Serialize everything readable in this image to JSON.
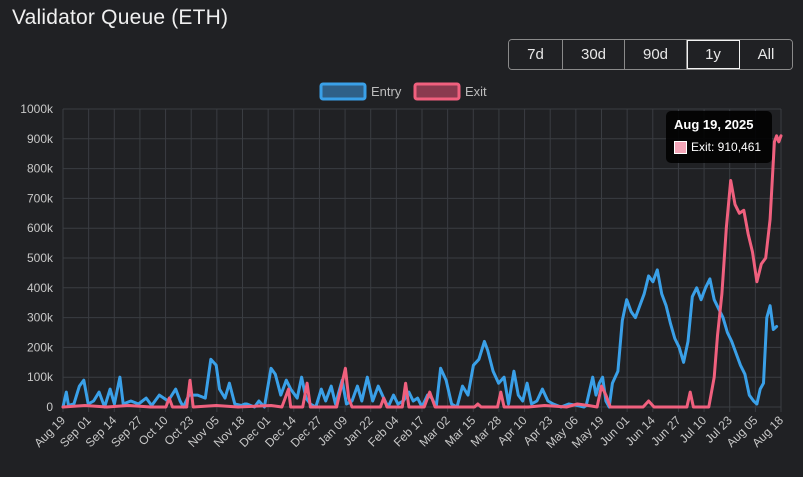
{
  "header": {
    "title": "Validator Queue (ETH)"
  },
  "range_selector": {
    "options": [
      "7d",
      "30d",
      "90d",
      "1y",
      "All"
    ],
    "active": "1y"
  },
  "tooltip": {
    "date": "Aug 19, 2025",
    "series": "Exit",
    "value": "910,461",
    "label": "Exit: 910,461"
  },
  "colors": {
    "entry": "#3aa0e8",
    "exit": "#f0607e",
    "background": "#202124",
    "grid": "#3a3d42"
  },
  "chart_data": {
    "type": "line",
    "title": "Validator Queue (ETH)",
    "ylim": [
      0,
      1000000
    ],
    "yticks": [
      0,
      100000,
      200000,
      300000,
      400000,
      500000,
      600000,
      700000,
      800000,
      900000,
      1000000
    ],
    "ytick_labels": [
      "0",
      "100k",
      "200k",
      "300k",
      "400k",
      "500k",
      "600k",
      "700k",
      "800k",
      "900k",
      "1000k"
    ],
    "xtick_labels": [
      "Aug 19",
      "Sep 01",
      "Sep 14",
      "Sep 27",
      "Oct 10",
      "Oct 23",
      "Nov 05",
      "Nov 18",
      "Dec 01",
      "Dec 14",
      "Dec 27",
      "Jan 09",
      "Jan 22",
      "Feb 04",
      "Feb 17",
      "Mar 02",
      "Mar 15",
      "Mar 28",
      "Apr 10",
      "Apr 23",
      "May 06",
      "May 19",
      "Jun 01",
      "Jun 14",
      "Jun 27",
      "Jul 10",
      "Jul 23",
      "Aug 05",
      "Aug 18"
    ],
    "legend_position": "top-center",
    "series": [
      {
        "name": "Entry",
        "color": "#3aa0e8",
        "points": [
          [
            0,
            0
          ],
          [
            3,
            50000
          ],
          [
            5,
            5000
          ],
          [
            10,
            10000
          ],
          [
            15,
            70000
          ],
          [
            19,
            90000
          ],
          [
            23,
            10000
          ],
          [
            28,
            20000
          ],
          [
            33,
            50000
          ],
          [
            38,
            0
          ],
          [
            43,
            60000
          ],
          [
            47,
            10000
          ],
          [
            52,
            100000
          ],
          [
            55,
            10000
          ],
          [
            62,
            20000
          ],
          [
            69,
            10000
          ],
          [
            76,
            30000
          ],
          [
            81,
            5000
          ],
          [
            88,
            40000
          ],
          [
            96,
            20000
          ],
          [
            103,
            60000
          ],
          [
            107,
            20000
          ],
          [
            110,
            0
          ],
          [
            115,
            40000
          ],
          [
            120,
            40000
          ],
          [
            123,
            40000
          ],
          [
            130,
            30000
          ],
          [
            135,
            160000
          ],
          [
            140,
            140000
          ],
          [
            143,
            60000
          ],
          [
            148,
            30000
          ],
          [
            152,
            80000
          ],
          [
            157,
            10000
          ],
          [
            163,
            5000
          ],
          [
            166,
            10000
          ],
          [
            168,
            10000
          ],
          [
            175,
            0
          ],
          [
            179,
            20000
          ],
          [
            184,
            0
          ],
          [
            190,
            130000
          ],
          [
            194,
            110000
          ],
          [
            199,
            40000
          ],
          [
            204,
            90000
          ],
          [
            208,
            60000
          ],
          [
            214,
            30000
          ],
          [
            218,
            100000
          ],
          [
            222,
            30000
          ],
          [
            226,
            10000
          ],
          [
            231,
            0
          ],
          [
            236,
            60000
          ],
          [
            240,
            20000
          ],
          [
            245,
            70000
          ],
          [
            249,
            10000
          ],
          [
            255,
            90000
          ],
          [
            259,
            10000
          ],
          [
            264,
            20000
          ],
          [
            269,
            70000
          ],
          [
            273,
            20000
          ],
          [
            278,
            100000
          ],
          [
            283,
            20000
          ],
          [
            288,
            70000
          ],
          [
            293,
            30000
          ],
          [
            297,
            0
          ],
          [
            302,
            40000
          ],
          [
            306,
            10000
          ],
          [
            311,
            20000
          ],
          [
            316,
            50000
          ],
          [
            320,
            20000
          ],
          [
            324,
            30000
          ],
          [
            328,
            0
          ],
          [
            333,
            40000
          ],
          [
            337,
            30000
          ],
          [
            341,
            0
          ],
          [
            345,
            130000
          ],
          [
            350,
            90000
          ],
          [
            355,
            10000
          ],
          [
            360,
            0
          ],
          [
            365,
            70000
          ],
          [
            370,
            40000
          ],
          [
            375,
            140000
          ],
          [
            380,
            160000
          ],
          [
            385,
            220000
          ],
          [
            388,
            190000
          ],
          [
            393,
            120000
          ],
          [
            398,
            80000
          ],
          [
            403,
            100000
          ],
          [
            407,
            10000
          ],
          [
            412,
            120000
          ],
          [
            416,
            40000
          ],
          [
            420,
            20000
          ],
          [
            424,
            80000
          ],
          [
            428,
            10000
          ],
          [
            433,
            20000
          ],
          [
            438,
            60000
          ],
          [
            443,
            20000
          ],
          [
            448,
            10000
          ],
          [
            455,
            0
          ],
          [
            462,
            10000
          ],
          [
            470,
            5000
          ],
          [
            476,
            0
          ],
          [
            478,
            5000
          ],
          [
            484,
            100000
          ],
          [
            487,
            40000
          ],
          [
            490,
            80000
          ],
          [
            493,
            100000
          ],
          [
            496,
            20000
          ],
          [
            499,
            0
          ],
          [
            502,
            80000
          ],
          [
            507,
            120000
          ],
          [
            511,
            290000
          ],
          [
            515,
            360000
          ],
          [
            519,
            320000
          ],
          [
            523,
            300000
          ],
          [
            527,
            340000
          ],
          [
            531,
            380000
          ],
          [
            535,
            440000
          ],
          [
            539,
            420000
          ],
          [
            543,
            460000
          ],
          [
            547,
            380000
          ],
          [
            551,
            340000
          ],
          [
            555,
            280000
          ],
          [
            559,
            230000
          ],
          [
            563,
            200000
          ],
          [
            567,
            150000
          ],
          [
            571,
            220000
          ],
          [
            575,
            370000
          ],
          [
            579,
            400000
          ],
          [
            583,
            360000
          ],
          [
            587,
            400000
          ],
          [
            591,
            430000
          ],
          [
            595,
            360000
          ],
          [
            599,
            330000
          ],
          [
            603,
            300000
          ],
          [
            607,
            250000
          ],
          [
            611,
            220000
          ],
          [
            615,
            180000
          ],
          [
            619,
            140000
          ],
          [
            623,
            110000
          ],
          [
            627,
            40000
          ],
          [
            631,
            20000
          ],
          [
            634,
            10000
          ],
          [
            637,
            60000
          ],
          [
            640,
            80000
          ],
          [
            643,
            300000
          ],
          [
            646,
            340000
          ],
          [
            649,
            260000
          ],
          [
            652,
            270000
          ]
        ]
      },
      {
        "name": "Exit",
        "color": "#f0607e",
        "points": [
          [
            0,
            0
          ],
          [
            20,
            5000
          ],
          [
            40,
            0
          ],
          [
            60,
            5000
          ],
          [
            80,
            0
          ],
          [
            94,
            0
          ],
          [
            97,
            30000
          ],
          [
            100,
            0
          ],
          [
            113,
            0
          ],
          [
            116,
            90000
          ],
          [
            119,
            0
          ],
          [
            140,
            5000
          ],
          [
            160,
            0
          ],
          [
            190,
            5000
          ],
          [
            200,
            0
          ],
          [
            206,
            60000
          ],
          [
            208,
            0
          ],
          [
            219,
            0
          ],
          [
            223,
            80000
          ],
          [
            226,
            0
          ],
          [
            250,
            0
          ],
          [
            258,
            130000
          ],
          [
            261,
            30000
          ],
          [
            264,
            0
          ],
          [
            290,
            0
          ],
          [
            293,
            30000
          ],
          [
            296,
            0
          ],
          [
            310,
            0
          ],
          [
            313,
            80000
          ],
          [
            316,
            0
          ],
          [
            330,
            0
          ],
          [
            335,
            50000
          ],
          [
            340,
            0
          ],
          [
            376,
            0
          ],
          [
            379,
            10000
          ],
          [
            382,
            0
          ],
          [
            397,
            0
          ],
          [
            400,
            50000
          ],
          [
            403,
            0
          ],
          [
            425,
            0
          ],
          [
            440,
            5000
          ],
          [
            460,
            0
          ],
          [
            470,
            10000
          ],
          [
            480,
            5000
          ],
          [
            488,
            0
          ],
          [
            492,
            70000
          ],
          [
            496,
            40000
          ],
          [
            500,
            0
          ],
          [
            530,
            0
          ],
          [
            535,
            20000
          ],
          [
            540,
            0
          ],
          [
            570,
            0
          ],
          [
            573,
            50000
          ],
          [
            576,
            0
          ],
          [
            590,
            0
          ],
          [
            595,
            100000
          ],
          [
            598,
            240000
          ],
          [
            602,
            380000
          ],
          [
            606,
            600000
          ],
          [
            610,
            760000
          ],
          [
            614,
            680000
          ],
          [
            618,
            650000
          ],
          [
            622,
            660000
          ],
          [
            626,
            580000
          ],
          [
            630,
            520000
          ],
          [
            634,
            420000
          ],
          [
            638,
            480000
          ],
          [
            642,
            500000
          ],
          [
            646,
            630000
          ],
          [
            650,
            890000
          ],
          [
            652,
            910000
          ],
          [
            654,
            890000
          ],
          [
            656,
            910000
          ]
        ]
      }
    ]
  }
}
